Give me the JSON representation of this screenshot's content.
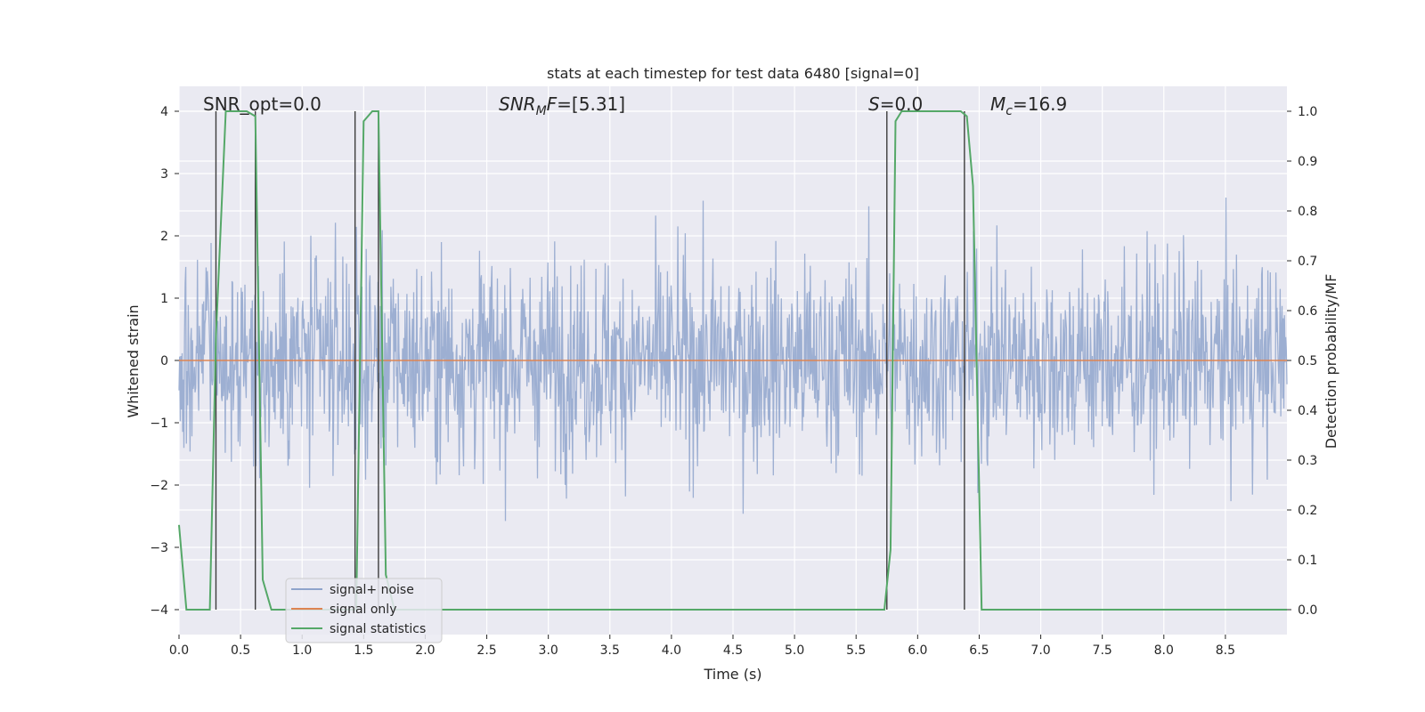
{
  "chart_data": {
    "type": "line",
    "title": "stats at each timestep for test data 6480 [signal=0]",
    "xlabel": "Time (s)",
    "ylabel": "Whitened strain",
    "ylabel_right": "Detection probability/MF",
    "xlim": [
      0.0,
      9.0
    ],
    "ylim": [
      -4.4,
      4.4
    ],
    "ylim_right": [
      -0.05,
      1.05
    ],
    "xticks": [
      "0.0",
      "0.5",
      "1.0",
      "1.5",
      "2.0",
      "2.5",
      "3.0",
      "3.5",
      "4.0",
      "4.5",
      "5.0",
      "5.5",
      "6.0",
      "6.5",
      "7.0",
      "7.5",
      "8.0",
      "8.5"
    ],
    "yticks": [
      "−4",
      "−3",
      "−2",
      "−1",
      "0",
      "1",
      "2",
      "3",
      "4"
    ],
    "yticks_right": [
      "0.0",
      "0.1",
      "0.2",
      "0.3",
      "0.4",
      "0.5",
      "0.6",
      "0.7",
      "0.8",
      "0.9",
      "1.0"
    ],
    "grid": true,
    "legend_position": "lower-left",
    "annotations": {
      "snr_opt": "SNR_opt=0.0",
      "snr_mf_main": "SNR",
      "snr_mf_sub": "M",
      "snr_mf_rest": "F=[5.31]",
      "s_main": "S",
      "s_rest": "=0.0",
      "mc_main": "M",
      "mc_sub": "c",
      "mc_rest": "=16.9"
    },
    "series": [
      {
        "name": "signal+ noise",
        "color": "#8fa4cc",
        "description_range": [
          -4.0,
          4.0
        ],
        "envelope_typical": 1.6
      },
      {
        "name": "signal only",
        "color": "#dd8452",
        "x": [
          0.0,
          9.0
        ],
        "y": [
          0.0,
          0.0
        ]
      },
      {
        "name": "signal statistics",
        "color": "#55a868",
        "axis": "right",
        "x": [
          0.0,
          0.06,
          0.25,
          0.3,
          0.38,
          0.55,
          0.62,
          0.68,
          0.75,
          1.44,
          1.5,
          1.57,
          1.62,
          1.68,
          1.75,
          5.73,
          5.78,
          5.82,
          5.87,
          6.35,
          6.4,
          6.45,
          6.52,
          9.0
        ],
        "y": [
          0.17,
          0.0,
          0.0,
          0.55,
          1.0,
          1.0,
          0.99,
          0.06,
          0.0,
          0.0,
          0.98,
          1.0,
          1.0,
          0.07,
          0.0,
          0.0,
          0.12,
          0.98,
          1.0,
          1.0,
          0.99,
          0.85,
          0.0,
          0.0
        ]
      }
    ],
    "vlines": [
      0.3,
      0.62,
      1.43,
      1.62,
      5.75,
      6.38
    ]
  },
  "colors": {
    "background": "#eaeaf2",
    "grid": "#ffffff",
    "vline": "#3c3c3c"
  }
}
